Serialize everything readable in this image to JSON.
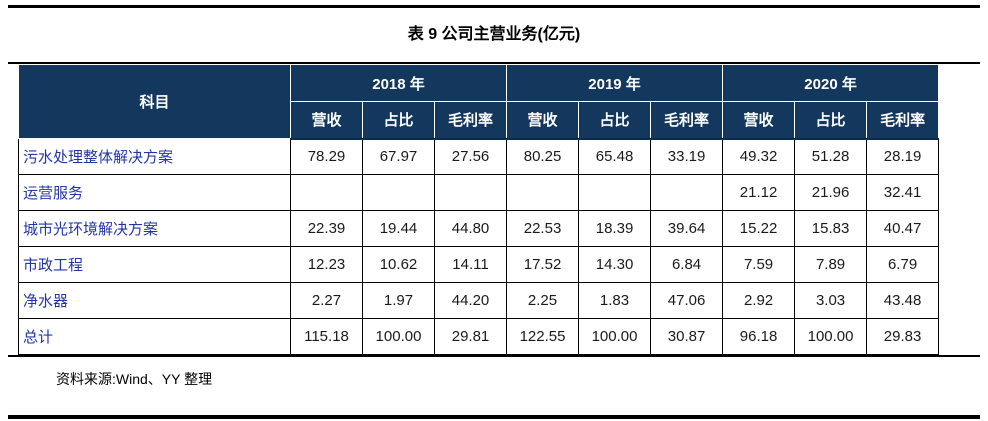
{
  "page": {
    "title": "表 9  公司主营业务(亿元)",
    "source_note": "资料来源:Wind、YY 整理"
  },
  "colors": {
    "header_bg": "#13375D",
    "row_label_text": "#2334A5",
    "rule": "#000000"
  },
  "table": {
    "corner_header": "科目",
    "year_groups": [
      "2018 年",
      "2019 年",
      "2020 年"
    ],
    "sub_headers": [
      "营收",
      "占比",
      "毛利率"
    ],
    "rows": [
      {
        "label": "污水处理整体解决方案",
        "values": [
          "78.29",
          "67.97",
          "27.56",
          "80.25",
          "65.48",
          "33.19",
          "49.32",
          "51.28",
          "28.19"
        ]
      },
      {
        "label": "运营服务",
        "values": [
          "",
          "",
          "",
          "",
          "",
          "",
          "21.12",
          "21.96",
          "32.41"
        ]
      },
      {
        "label": "城市光环境解决方案",
        "values": [
          "22.39",
          "19.44",
          "44.80",
          "22.53",
          "18.39",
          "39.64",
          "15.22",
          "15.83",
          "40.47"
        ]
      },
      {
        "label": "市政工程",
        "values": [
          "12.23",
          "10.62",
          "14.11",
          "17.52",
          "14.30",
          "6.84",
          "7.59",
          "7.89",
          "6.79"
        ]
      },
      {
        "label": "净水器",
        "values": [
          "2.27",
          "1.97",
          "44.20",
          "2.25",
          "1.83",
          "47.06",
          "2.92",
          "3.03",
          "43.48"
        ]
      },
      {
        "label": "总计",
        "values": [
          "115.18",
          "100.00",
          "29.81",
          "122.55",
          "100.00",
          "30.87",
          "96.18",
          "100.00",
          "29.83"
        ]
      }
    ]
  }
}
